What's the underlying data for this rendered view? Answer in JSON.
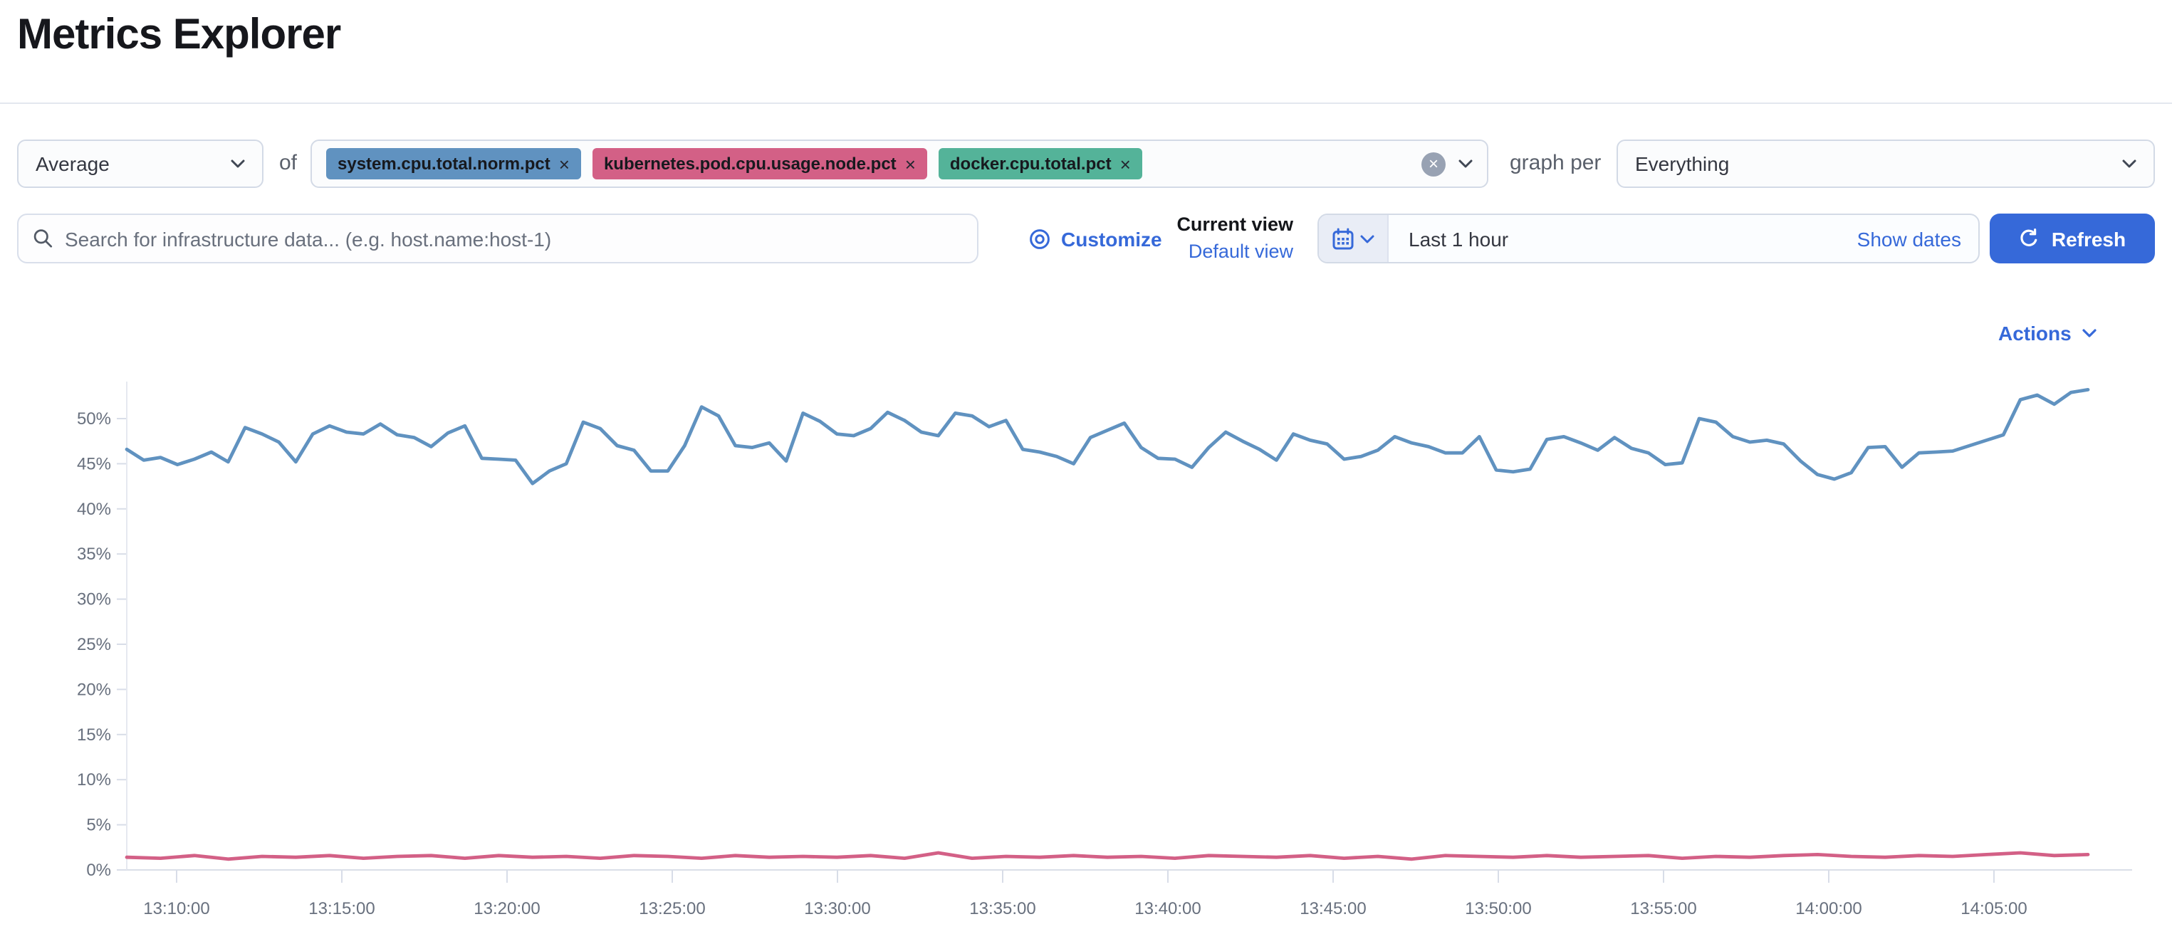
{
  "page": {
    "title": "Metrics Explorer"
  },
  "toolbar": {
    "aggregation_value": "Average",
    "of_label": "of",
    "metrics": [
      {
        "label": "system.cpu.total.norm.pct",
        "color": "#6092c0"
      },
      {
        "label": "kubernetes.pod.cpu.usage.node.pct",
        "color": "#d36086"
      },
      {
        "label": "docker.cpu.total.pct",
        "color": "#54b399"
      }
    ],
    "remove_icon": "×",
    "clear_icon": "×",
    "graph_per_label": "graph per",
    "graph_per_value": "Everything"
  },
  "search": {
    "placeholder": "Search for infrastructure data... (e.g. host.name:host-1)"
  },
  "views": {
    "customize_label": "Customize",
    "current_view": "Current view",
    "default_view": "Default view"
  },
  "time": {
    "range": "Last 1 hour",
    "show_dates": "Show dates",
    "refresh": "Refresh"
  },
  "chart_header": {
    "actions_label": "Actions"
  },
  "colors": {
    "accent_blue": "#3669d9",
    "series_blue": "#6092c0",
    "series_pink": "#d36086",
    "badge_green": "#54b399",
    "axis_text": "#68707e",
    "axis_line": "#d8dde8"
  },
  "chart_data": {
    "type": "line",
    "title": "",
    "xlabel": "",
    "ylabel": "",
    "x_range": [
      "13:08:30",
      "14:07:00"
    ],
    "x_tick_labels": [
      "13:10:00",
      "13:15:00",
      "13:20:00",
      "13:25:00",
      "13:30:00",
      "13:35:00",
      "13:40:00",
      "13:45:00",
      "13:50:00",
      "13:55:00",
      "14:00:00",
      "14:05:00"
    ],
    "y_tick_labels": [
      "0%",
      "5%",
      "10%",
      "15%",
      "20%",
      "25%",
      "30%",
      "35%",
      "40%",
      "45%",
      "50%"
    ],
    "ylim": [
      0,
      55
    ],
    "grid": false,
    "legend": "hidden",
    "series": [
      {
        "name": "system.cpu.total.norm.pct",
        "color": "#6092c0",
        "unit": "%",
        "values": [
          46.6,
          45.4,
          45.7,
          44.9,
          45.5,
          46.3,
          45.2,
          49.0,
          48.3,
          47.4,
          45.2,
          48.3,
          49.2,
          48.5,
          48.3,
          49.4,
          48.2,
          47.9,
          46.9,
          48.4,
          49.2,
          45.6,
          45.5,
          45.4,
          42.8,
          44.2,
          45.0,
          49.6,
          48.9,
          47.0,
          46.5,
          44.2,
          44.2,
          47.0,
          51.3,
          50.3,
          47.0,
          46.8,
          47.3,
          45.3,
          50.6,
          49.7,
          48.3,
          48.1,
          48.9,
          50.7,
          49.8,
          48.5,
          48.1,
          50.6,
          50.3,
          49.1,
          49.8,
          46.6,
          46.3,
          45.8,
          45.0,
          47.9,
          48.7,
          49.5,
          46.8,
          45.6,
          45.5,
          44.6,
          46.8,
          48.5,
          47.5,
          46.6,
          45.4,
          48.3,
          47.6,
          47.2,
          45.5,
          45.8,
          46.5,
          48.0,
          47.3,
          46.9,
          46.2,
          46.2,
          48.0,
          44.3,
          44.1,
          44.4,
          47.7,
          48.0,
          47.3,
          46.5,
          47.9,
          46.7,
          46.2,
          44.9,
          45.1,
          50.0,
          49.6,
          48.0,
          47.4,
          47.6,
          47.2,
          45.3,
          43.8,
          43.3,
          44.0,
          46.8,
          46.9,
          44.6,
          46.2,
          46.3,
          46.4,
          47.0,
          47.6,
          48.2,
          52.1,
          52.6,
          51.6,
          52.9,
          53.2
        ]
      },
      {
        "name": "kubernetes.pod.cpu.usage.node.pct",
        "color": "#d36086",
        "unit": "%",
        "values": [
          1.4,
          1.3,
          1.6,
          1.2,
          1.5,
          1.4,
          1.6,
          1.3,
          1.5,
          1.6,
          1.3,
          1.6,
          1.4,
          1.5,
          1.3,
          1.6,
          1.5,
          1.3,
          1.6,
          1.4,
          1.5,
          1.4,
          1.6,
          1.3,
          1.9,
          1.3,
          1.5,
          1.4,
          1.6,
          1.4,
          1.5,
          1.3,
          1.6,
          1.5,
          1.4,
          1.6,
          1.3,
          1.5,
          1.2,
          1.6,
          1.5,
          1.4,
          1.6,
          1.4,
          1.5,
          1.6,
          1.3,
          1.5,
          1.4,
          1.6,
          1.7,
          1.5,
          1.4,
          1.6,
          1.5,
          1.7,
          1.9,
          1.6,
          1.7
        ]
      }
    ]
  }
}
